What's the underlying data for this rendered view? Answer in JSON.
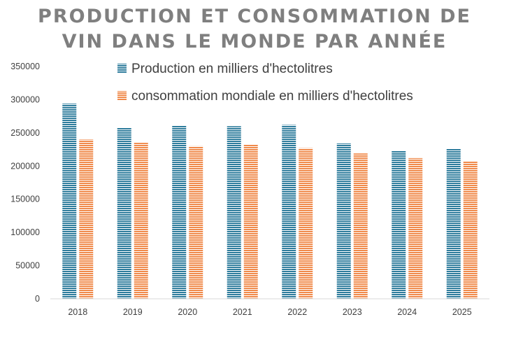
{
  "chart_data": {
    "type": "bar",
    "title_lines": [
      "PRODUCTION ET CONSOMMATION DE",
      "VIN DANS LE MONDE PAR ANNÉE"
    ],
    "categories": [
      "2018",
      "2019",
      "2020",
      "2021",
      "2022",
      "2023",
      "2024",
      "2025"
    ],
    "series": [
      {
        "name": "Production en milliers d'hectolitres",
        "color": "#2e7c9c",
        "values": [
          294000,
          258000,
          261000,
          260000,
          262000,
          234000,
          223000,
          226000
        ]
      },
      {
        "name": "consommation mondiale en milliers d'hectolitres",
        "color": "#f08a4b",
        "values": [
          240000,
          235000,
          230000,
          232000,
          227000,
          219000,
          212000,
          207000
        ]
      }
    ],
    "ylim": [
      0,
      350000
    ],
    "yticks": [
      "0",
      "50000",
      "100000",
      "150000",
      "200000",
      "250000",
      "300000",
      "350000"
    ],
    "grid": false,
    "legend_position": "top"
  }
}
